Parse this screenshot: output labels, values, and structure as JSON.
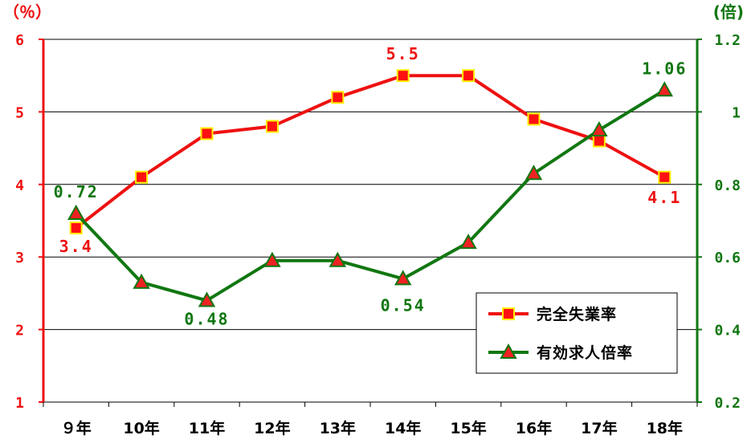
{
  "chart_data": {
    "type": "line",
    "categories": [
      "９年",
      "10年",
      "11年",
      "12年",
      "13年",
      "14年",
      "15年",
      "16年",
      "17年",
      "18年"
    ],
    "y_left": {
      "unit_label": "（％）",
      "ylim": [
        1,
        6
      ],
      "ticks": [
        "1",
        "2",
        "3",
        "4",
        "5",
        "6"
      ],
      "color": "#ee1111"
    },
    "y_right": {
      "unit_label": "(倍)",
      "ylim": [
        0.2,
        1.2
      ],
      "ticks": [
        "0.2",
        "0.4",
        "0.6",
        "0.8",
        "1",
        "1.2"
      ],
      "color": "#117711"
    },
    "grid": true,
    "legend_position": "bottom-right",
    "series": [
      {
        "name": "完全失業率",
        "axis": "left",
        "color": "#ee1111",
        "marker": "square",
        "marker_fill": "#ff1111",
        "marker_edge": "#ffee00",
        "values": [
          3.4,
          4.1,
          4.7,
          4.8,
          5.2,
          5.5,
          5.5,
          4.9,
          4.6,
          4.1
        ],
        "data_labels": [
          {
            "index": 0,
            "text": "3.4"
          },
          {
            "index": 5,
            "text": "5.5"
          },
          {
            "index": 9,
            "text": "4.1"
          }
        ]
      },
      {
        "name": "有効求人倍率",
        "axis": "right",
        "color": "#117711",
        "marker": "triangle",
        "marker_fill": "#ee2222",
        "marker_edge": "#117711",
        "values": [
          0.72,
          0.53,
          0.48,
          0.59,
          0.59,
          0.54,
          0.64,
          0.83,
          0.95,
          1.06
        ],
        "data_labels": [
          {
            "index": 0,
            "text": "0.72"
          },
          {
            "index": 2,
            "text": "0.48"
          },
          {
            "index": 5,
            "text": "0.54"
          },
          {
            "index": 9,
            "text": "1.06"
          }
        ]
      }
    ]
  }
}
